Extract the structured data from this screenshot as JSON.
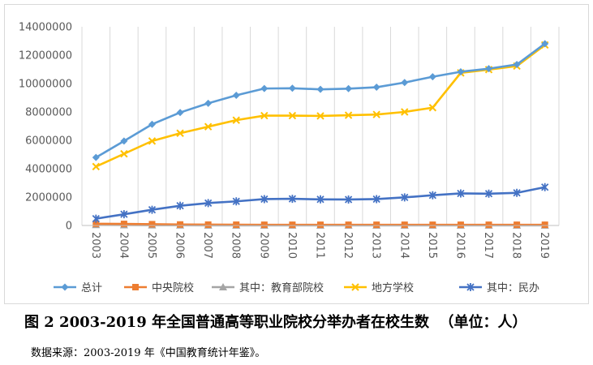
{
  "chart_data": {
    "type": "line",
    "categories": [
      "2003",
      "2004",
      "2005",
      "2006",
      "2007",
      "2008",
      "2009",
      "2010",
      "2011",
      "2012",
      "2013",
      "2014",
      "2015",
      "2016",
      "2017",
      "2018",
      "2019"
    ],
    "y_ticks": [
      "0",
      "2000000",
      "4000000",
      "6000000",
      "8000000",
      "10000000",
      "12000000",
      "14000000"
    ],
    "ylim": [
      0,
      14000000
    ],
    "grid": "vertical",
    "legend_position": "bottom",
    "series": [
      {
        "name": "总计",
        "color": "#5B9BD5",
        "marker": "diamond",
        "values": [
          4790000,
          5950000,
          7130000,
          7960000,
          8610000,
          9170000,
          9650000,
          9670000,
          9590000,
          9640000,
          9740000,
          10070000,
          10480000,
          10830000,
          11050000,
          11340000,
          12810000
        ]
      },
      {
        "name": "中央院校",
        "color": "#ED7D31",
        "marker": "square",
        "values": [
          120000,
          110000,
          90000,
          70000,
          60000,
          55000,
          50000,
          50000,
          50000,
          50000,
          50000,
          50000,
          50000,
          50000,
          50000,
          50000,
          50000
        ]
      },
      {
        "name": "其中：教育部院校",
        "color": "#A5A5A5",
        "marker": "triangle",
        "values": [
          40000,
          30000,
          20000,
          15000,
          10000,
          10000,
          10000,
          10000,
          10000,
          10000,
          10000,
          10000,
          10000,
          10000,
          10000,
          10000,
          10000
        ]
      },
      {
        "name": "地方学校",
        "color": "#FFC000",
        "marker": "x",
        "values": [
          4150000,
          5050000,
          5950000,
          6500000,
          6960000,
          7420000,
          7740000,
          7740000,
          7720000,
          7770000,
          7820000,
          8000000,
          8300000,
          10750000,
          10980000,
          11230000,
          12720000
        ]
      },
      {
        "name": "其中：民办",
        "color": "#4472C4",
        "marker": "star",
        "values": [
          480000,
          790000,
          1110000,
          1390000,
          1580000,
          1700000,
          1860000,
          1880000,
          1840000,
          1830000,
          1860000,
          1980000,
          2130000,
          2260000,
          2240000,
          2300000,
          2700000
        ]
      }
    ]
  },
  "caption": "图 2 2003-2019 年全国普通高等职业院校分举办者在校生数  （单位：人）",
  "source": "数据来源：2003-2019 年《中国教育统计年鉴》。"
}
